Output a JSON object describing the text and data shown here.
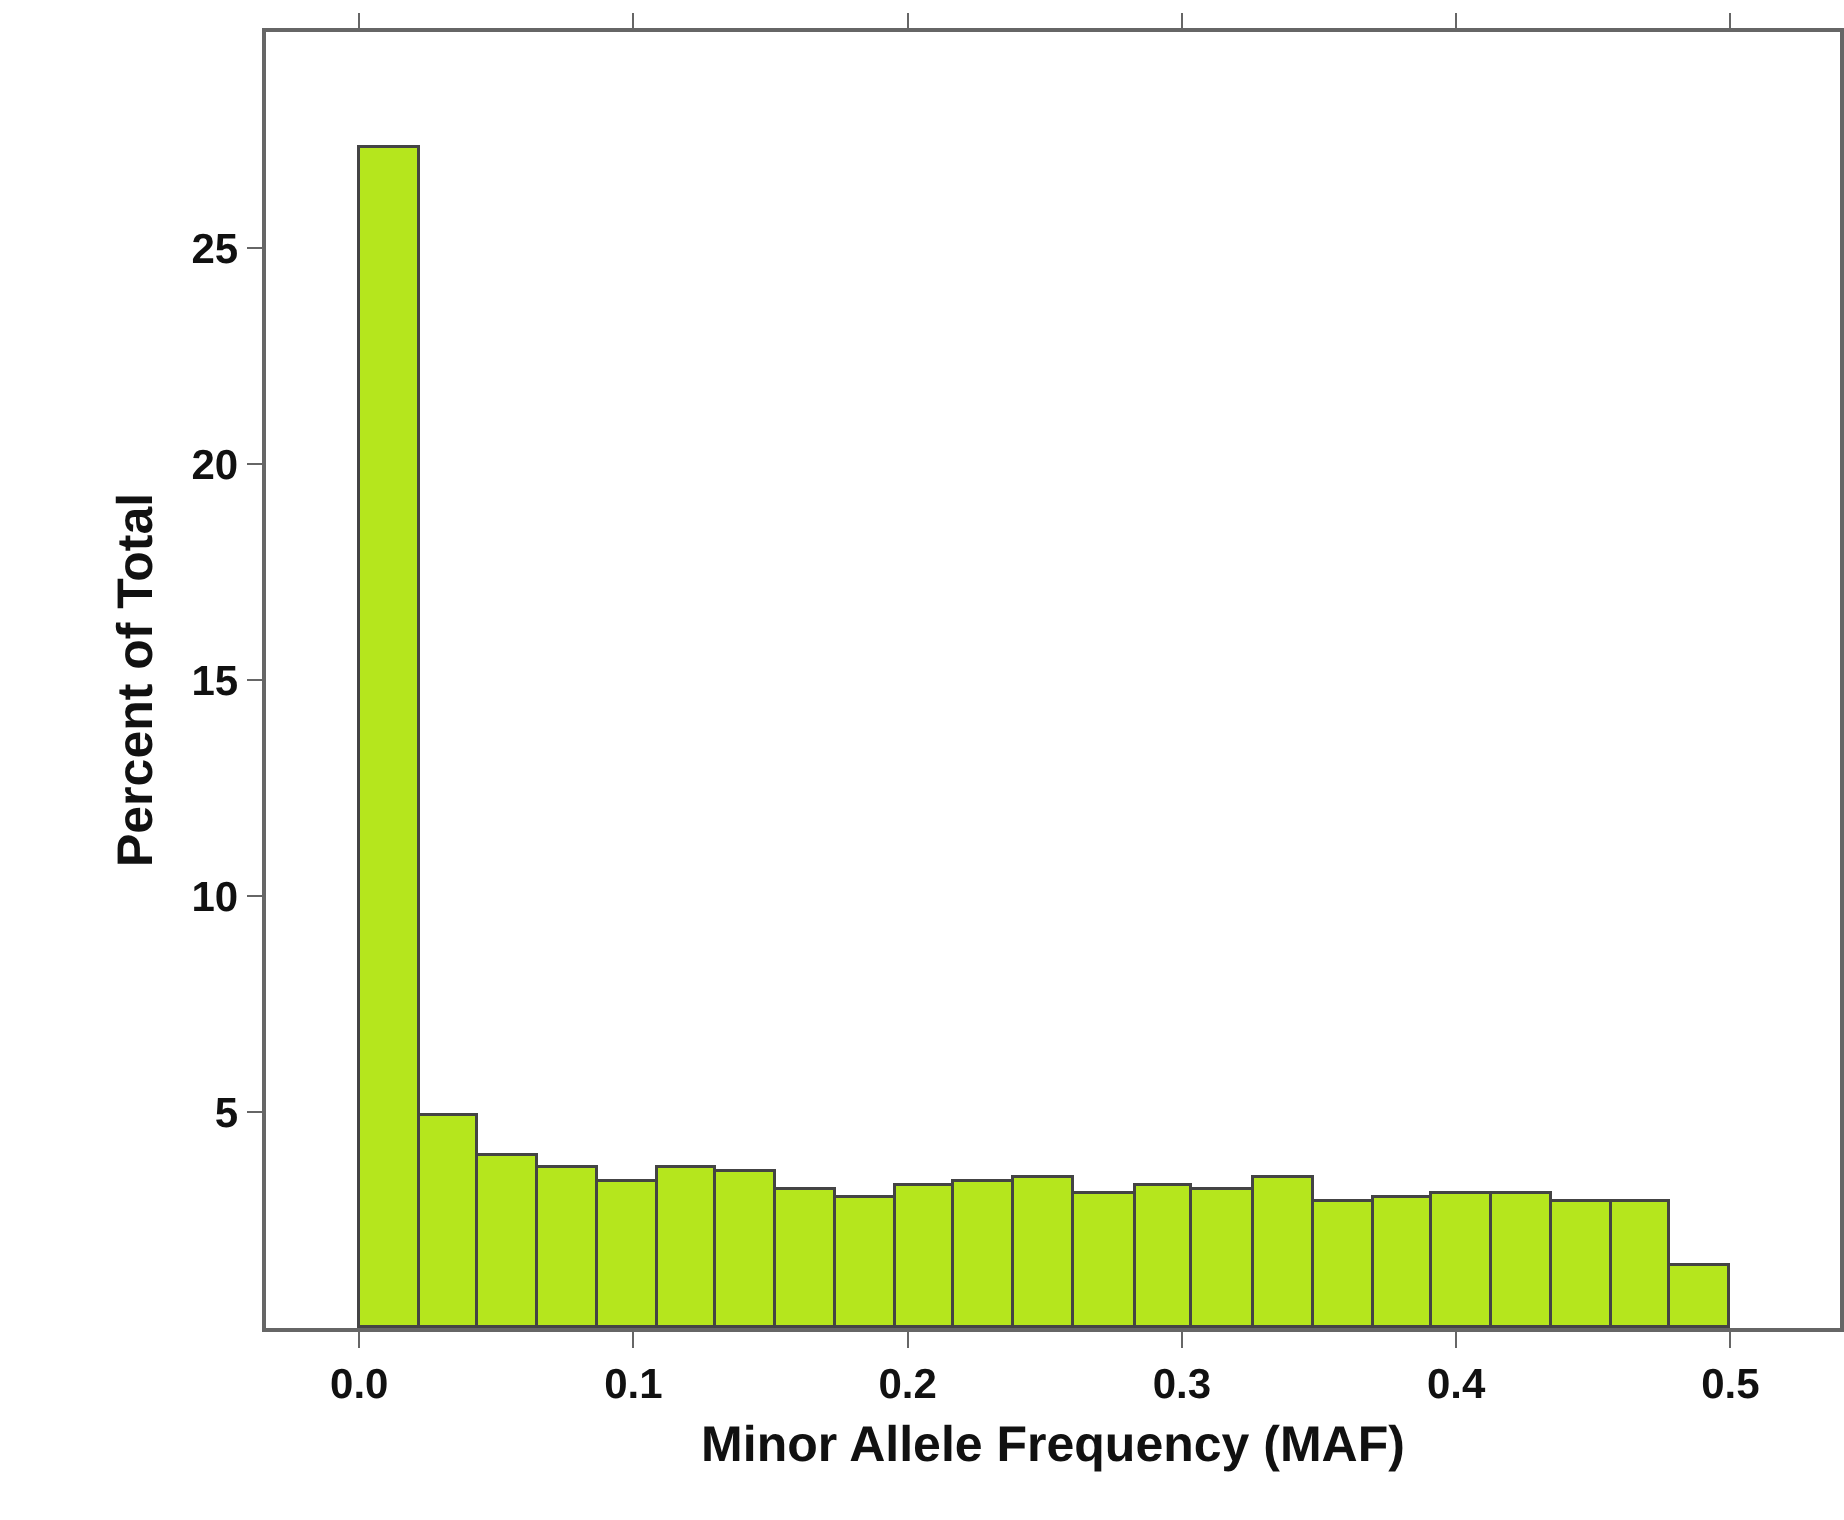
{
  "chart_data": {
    "type": "histogram",
    "xlabel": "Minor Allele Frequency (MAF)",
    "ylabel": "Percent of Total",
    "bins": [
      0,
      0.022,
      0.043,
      0.065,
      0.087,
      0.109,
      0.13,
      0.152,
      0.174,
      0.196,
      0.217,
      0.239,
      0.261,
      0.283,
      0.304,
      0.326,
      0.348,
      0.37,
      0.391,
      0.413,
      0.435,
      0.457,
      0.478,
      0.5
    ],
    "values": [
      27.3,
      4.9,
      4.0,
      3.7,
      3.4,
      3.7,
      3.6,
      3.2,
      3.0,
      3.3,
      3.4,
      3.45,
      3.1,
      3.3,
      3.2,
      3.45,
      2.9,
      3.0,
      3.1,
      3.1,
      2.9,
      2.9,
      1.45
    ],
    "color": "#b5e61d",
    "xlim": [
      -0.034,
      0.54
    ],
    "xticks": [
      {
        "value": 0,
        "label": "0.0"
      },
      0.1,
      0.2,
      0.3,
      0.4,
      0.5
    ],
    "ylim": [
      0,
      30
    ],
    "yticks": [
      5,
      10,
      15,
      20,
      25
    ],
    "grid": false
  }
}
